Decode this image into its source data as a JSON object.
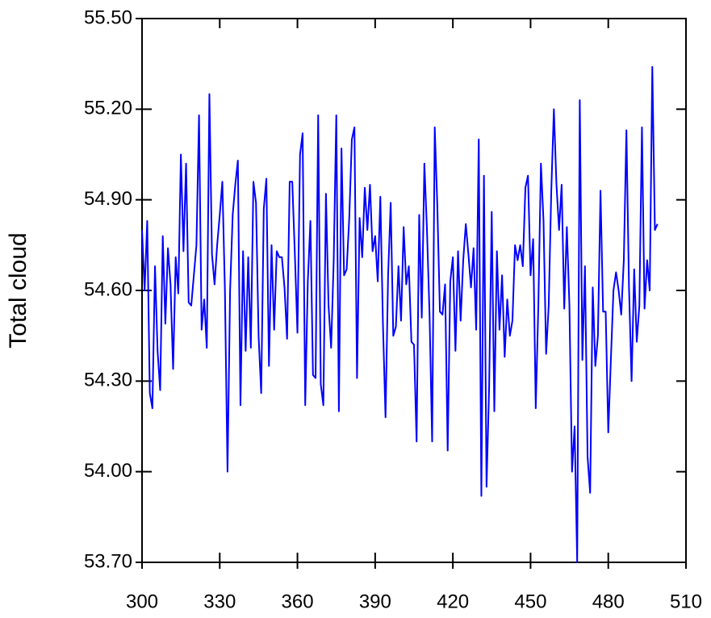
{
  "chart_data": {
    "type": "line",
    "ylabel": "Total cloud",
    "xlim": [
      300,
      510
    ],
    "xticks": [
      300,
      330,
      360,
      390,
      420,
      450,
      480,
      510
    ],
    "ylim": [
      53.7,
      55.5
    ],
    "yticks": [
      {
        "value": 53.7,
        "label": "53.70"
      },
      {
        "value": 54.0,
        "label": "54.00"
      },
      {
        "value": 54.3,
        "label": "54.30"
      },
      {
        "value": 54.6,
        "label": "54.60"
      },
      {
        "value": 54.9,
        "label": "54.90"
      },
      {
        "value": 55.2,
        "label": "55.20"
      },
      {
        "value": 55.5,
        "label": "55.50"
      }
    ],
    "color": "#0000ff",
    "x": [
      300,
      301,
      302,
      303,
      304,
      305,
      306,
      307,
      308,
      309,
      310,
      311,
      312,
      313,
      314,
      315,
      316,
      317,
      318,
      319,
      320,
      321,
      322,
      323,
      324,
      325,
      326,
      327,
      328,
      329,
      330,
      331,
      332,
      333,
      334,
      335,
      336,
      337,
      338,
      339,
      340,
      341,
      342,
      343,
      344,
      345,
      346,
      347,
      348,
      349,
      350,
      351,
      352,
      353,
      354,
      355,
      356,
      357,
      358,
      359,
      360,
      361,
      362,
      363,
      364,
      365,
      366,
      367,
      368,
      369,
      370,
      371,
      372,
      373,
      374,
      375,
      376,
      377,
      378,
      379,
      380,
      381,
      382,
      383,
      384,
      385,
      386,
      387,
      388,
      389,
      390,
      391,
      392,
      393,
      394,
      395,
      396,
      397,
      398,
      399,
      400,
      401,
      402,
      403,
      404,
      405,
      406,
      407,
      408,
      409,
      410,
      411,
      412,
      413,
      414,
      415,
      416,
      417,
      418,
      419,
      420,
      421,
      422,
      423,
      424,
      425,
      426,
      427,
      428,
      429,
      430,
      431,
      432,
      433,
      434,
      435,
      436,
      437,
      438,
      439,
      440,
      441,
      442,
      443,
      444,
      445,
      446,
      447,
      448,
      449,
      450,
      451,
      452,
      453,
      454,
      455,
      456,
      457,
      458,
      459,
      460,
      461,
      462,
      463,
      464,
      465,
      466,
      467,
      468,
      469,
      470,
      471,
      472,
      473,
      474,
      475,
      476,
      477,
      478,
      479,
      480,
      481,
      482,
      483,
      484,
      485,
      486,
      487,
      488,
      489,
      490,
      491,
      492,
      493,
      494,
      495,
      496,
      497,
      498,
      499
    ],
    "values": [
      54.8,
      54.6,
      54.83,
      54.26,
      54.21,
      54.68,
      54.4,
      54.27,
      54.78,
      54.49,
      54.74,
      54.62,
      54.34,
      54.71,
      54.59,
      55.05,
      54.73,
      55.02,
      54.56,
      54.55,
      54.65,
      54.75,
      55.18,
      54.47,
      54.57,
      54.41,
      55.25,
      54.72,
      54.62,
      54.75,
      54.85,
      54.96,
      54.6,
      54.0,
      54.6,
      54.85,
      54.95,
      55.03,
      54.22,
      54.73,
      54.4,
      54.71,
      54.41,
      54.96,
      54.89,
      54.45,
      54.26,
      54.87,
      54.97,
      54.35,
      54.75,
      54.47,
      54.73,
      54.71,
      54.71,
      54.61,
      54.44,
      54.96,
      54.96,
      54.72,
      54.46,
      55.05,
      55.12,
      54.22,
      54.63,
      54.83,
      54.32,
      54.31,
      55.18,
      54.29,
      54.22,
      54.92,
      54.55,
      54.41,
      54.7,
      55.18,
      54.2,
      55.07,
      54.65,
      54.67,
      54.84,
      55.1,
      55.14,
      54.31,
      54.84,
      54.71,
      54.94,
      54.8,
      54.95,
      54.73,
      54.78,
      54.63,
      54.91,
      54.49,
      54.18,
      54.65,
      54.89,
      54.45,
      54.48,
      54.68,
      54.5,
      54.81,
      54.62,
      54.68,
      54.43,
      54.42,
      54.1,
      54.85,
      54.51,
      55.02,
      54.8,
      54.52,
      54.1,
      55.14,
      54.88,
      54.53,
      54.52,
      54.62,
      54.07,
      54.63,
      54.71,
      54.4,
      54.73,
      54.5,
      54.7,
      54.82,
      54.72,
      54.61,
      54.74,
      54.47,
      55.1,
      53.92,
      54.98,
      53.95,
      54.28,
      54.86,
      54.2,
      54.73,
      54.47,
      54.65,
      54.38,
      54.57,
      54.45,
      54.5,
      54.75,
      54.7,
      54.75,
      54.68,
      54.94,
      54.98,
      54.65,
      54.77,
      54.21,
      54.55,
      55.02,
      54.83,
      54.39,
      54.55,
      54.93,
      55.2,
      54.95,
      54.8,
      54.95,
      54.54,
      54.81,
      54.55,
      54.0,
      54.15,
      53.7,
      55.23,
      54.37,
      54.68,
      54.05,
      53.93,
      54.61,
      54.35,
      54.45,
      54.93,
      54.53,
      54.53,
      54.13,
      54.37,
      54.6,
      54.66,
      54.6,
      54.52,
      54.7,
      55.13,
      54.61,
      54.3,
      54.67,
      54.43,
      54.55,
      55.14,
      54.54,
      54.7,
      54.6,
      55.34,
      54.8,
      54.82
    ]
  }
}
